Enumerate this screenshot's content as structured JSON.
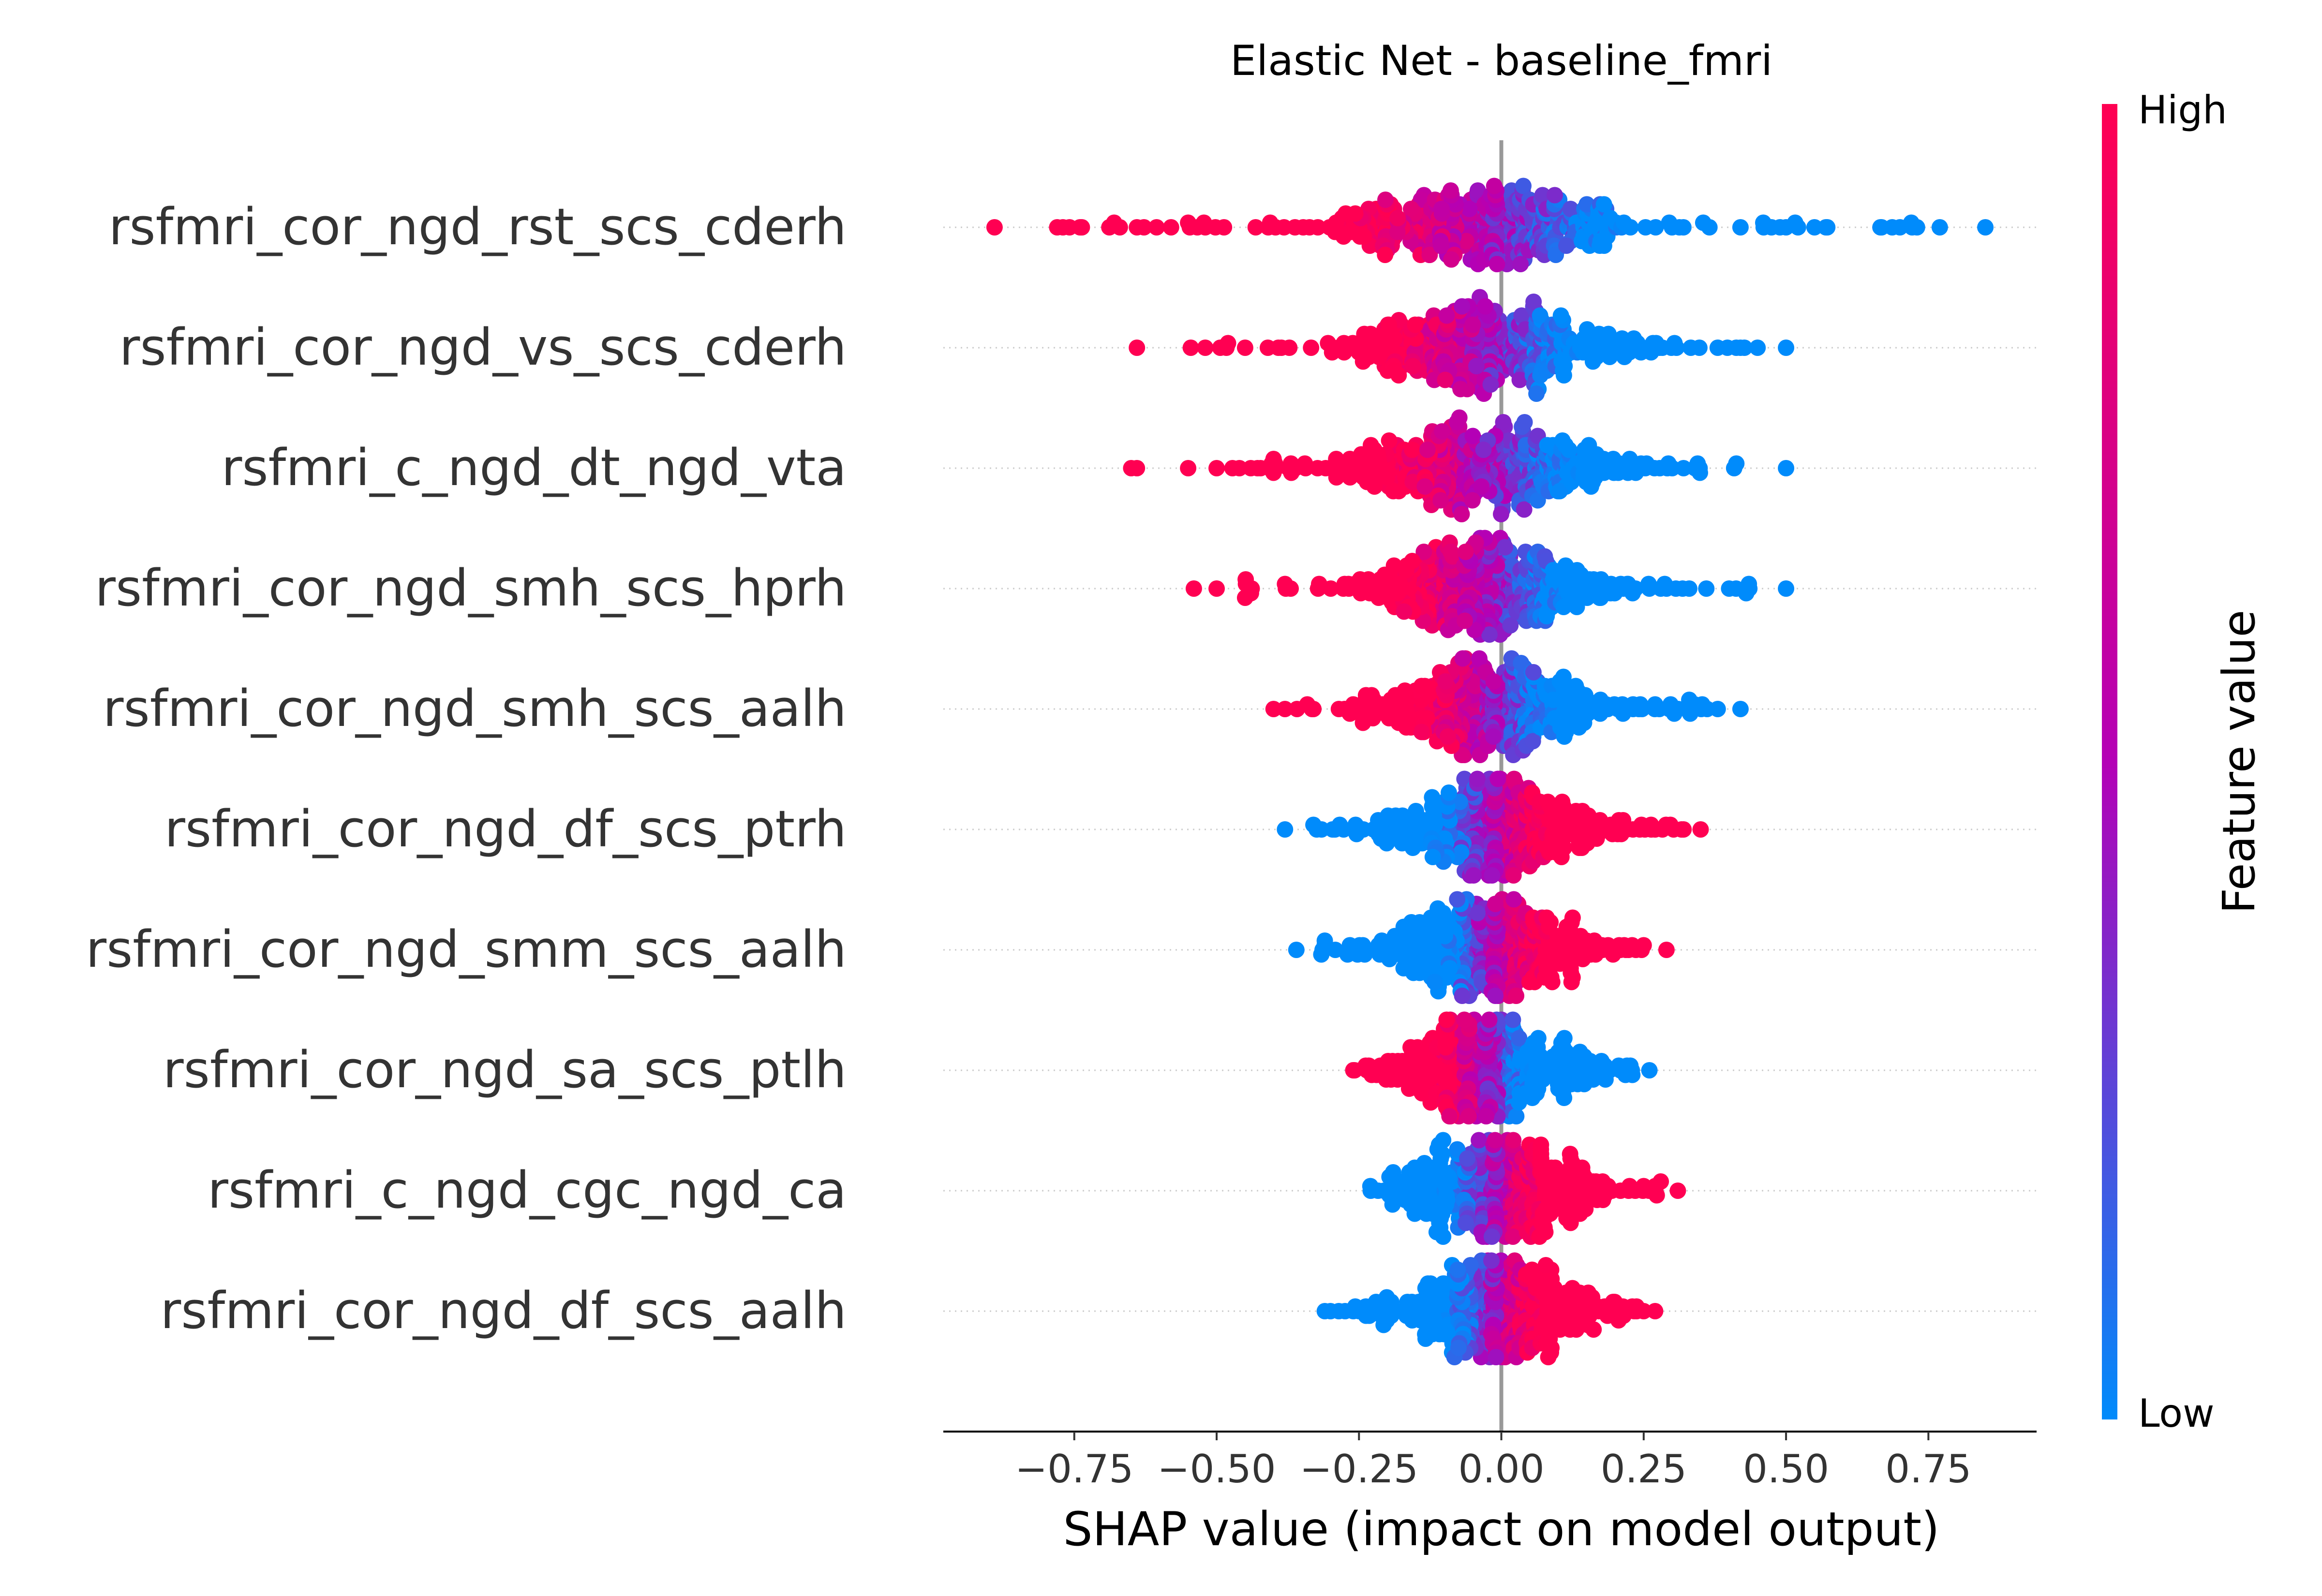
{
  "chart_data": {
    "type": "scatter",
    "subtype": "shap-beeswarm",
    "title": "Elastic Net - baseline_fmri",
    "xlabel": "SHAP value (impact on model output)",
    "ylabel": "",
    "xlim": [
      -0.98,
      0.94
    ],
    "xticks": [
      -0.75,
      -0.5,
      -0.25,
      0.0,
      0.25,
      0.5,
      0.75
    ],
    "xtick_labels": [
      "−0.75",
      "−0.50",
      "−0.25",
      "0.00",
      "0.25",
      "0.50",
      "0.75"
    ],
    "zero_line": 0.0,
    "grid": false,
    "colorbar": {
      "label": "Feature value",
      "high_label": "High",
      "low_label": "Low",
      "high_color": "#ff0052",
      "mid_color": "#b400b6",
      "low_color": "#008bfb",
      "placement": "right"
    },
    "series": [
      {
        "feature": "rsfmri_cor_ngd_rst_scs_cderh",
        "min": -0.89,
        "max": 0.85,
        "core": [
          -0.2,
          0.18
        ],
        "high_side": "negative",
        "outliers": [
          -0.89,
          -0.78,
          -0.77,
          -0.74,
          -0.68,
          -0.67,
          -0.64,
          -0.58,
          -0.55,
          -0.52,
          0.42,
          0.46,
          0.5,
          0.55,
          0.57,
          0.7,
          0.72,
          0.73,
          0.77,
          0.85
        ]
      },
      {
        "feature": "rsfmri_cor_ngd_vs_scs_cderh",
        "min": -0.64,
        "max": 0.5,
        "core": [
          -0.18,
          0.15
        ],
        "high_side": "negative",
        "outliers": [
          -0.64,
          -0.52,
          -0.48,
          -0.45,
          -0.41,
          0.38,
          0.42,
          0.45,
          0.5
        ]
      },
      {
        "feature": "rsfmri_c_ngd_dt_ngd_vta",
        "min": -0.65,
        "max": 0.5,
        "core": [
          -0.18,
          0.15
        ],
        "high_side": "negative",
        "outliers": [
          -0.65,
          -0.64,
          -0.55,
          -0.5,
          -0.46,
          -0.44,
          -0.4,
          0.3,
          0.32,
          0.34,
          0.5
        ]
      },
      {
        "feature": "rsfmri_cor_ngd_smh_scs_hprh",
        "min": -0.54,
        "max": 0.5,
        "core": [
          -0.15,
          0.13
        ],
        "high_side": "negative",
        "outliers": [
          -0.54,
          -0.5,
          -0.45,
          -0.38,
          -0.37,
          -0.32,
          0.28,
          0.33,
          0.36,
          0.4,
          0.43,
          0.5
        ]
      },
      {
        "feature": "rsfmri_cor_ngd_smh_scs_aalh",
        "min": -0.4,
        "max": 0.42,
        "core": [
          -0.14,
          0.13
        ],
        "high_side": "negative",
        "outliers": [
          -0.4,
          -0.38,
          -0.33,
          0.33,
          0.38,
          0.42
        ]
      },
      {
        "feature": "rsfmri_cor_ngd_df_scs_ptrh",
        "min": -0.38,
        "max": 0.35,
        "core": [
          -0.12,
          0.13
        ],
        "high_side": "positive",
        "outliers": [
          -0.38,
          -0.33,
          0.27,
          0.32,
          0.35
        ]
      },
      {
        "feature": "rsfmri_cor_ngd_smm_scs_aalh",
        "min": -0.36,
        "max": 0.29,
        "core": [
          -0.11,
          0.12
        ],
        "high_side": "positive",
        "outliers": [
          -0.36,
          -0.31,
          -0.27,
          -0.24,
          -0.21,
          0.25,
          0.29
        ]
      },
      {
        "feature": "rsfmri_cor_ngd_sa_scs_ptlh",
        "min": -0.26,
        "max": 0.26,
        "core": [
          -0.12,
          0.1
        ],
        "high_side": "negative",
        "outliers": [
          -0.26,
          0.19,
          0.23,
          0.26
        ]
      },
      {
        "feature": "rsfmri_c_ngd_cgc_ngd_ca",
        "min": -0.23,
        "max": 0.31,
        "core": [
          -0.1,
          0.12
        ],
        "high_side": "positive",
        "outliers": [
          -0.23,
          -0.19,
          0.25,
          0.28,
          0.31
        ]
      },
      {
        "feature": "rsfmri_cor_ngd_df_scs_aalh",
        "min": -0.31,
        "max": 0.27,
        "core": [
          -0.1,
          0.12
        ],
        "high_side": "positive",
        "outliers": [
          -0.31,
          -0.26,
          -0.22,
          0.23,
          0.25,
          0.27
        ]
      }
    ]
  }
}
